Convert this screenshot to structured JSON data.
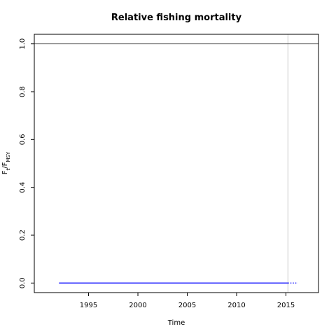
{
  "chart_data": {
    "type": "line",
    "title": "Relative fishing mortality",
    "xlabel": "Time",
    "ylabel_main": "F",
    "ylabel_sub_t": "t",
    "ylabel_slash": "/F",
    "ylabel_sub_msy": "MSY",
    "xlim": [
      1989.5,
      2018.3
    ],
    "ylim": [
      -0.04,
      1.04
    ],
    "x_ticks": [
      1995,
      2000,
      2005,
      2010,
      2015
    ],
    "x_tick_labels": [
      "1995",
      "2000",
      "2005",
      "2010",
      "2015"
    ],
    "y_ticks": [
      0.0,
      0.2,
      0.4,
      0.6,
      0.8,
      1.0
    ],
    "y_tick_labels": [
      "0.0",
      "0.2",
      "0.4",
      "0.6",
      "0.8",
      "1.0"
    ],
    "reference_line_y": 1.0,
    "reference_line_color": "#555555",
    "vertical_line_x": 2015.2,
    "vertical_line_color": "#cccccc",
    "series": [
      {
        "style": "solid",
        "color": "#0000ff",
        "x": [
          1992,
          2015.2
        ],
        "y": [
          0.0,
          0.0
        ]
      },
      {
        "style": "dotted",
        "color": "#0000ff",
        "x": [
          2015.2,
          2016.2
        ],
        "y": [
          0.0,
          0.0
        ]
      }
    ]
  }
}
